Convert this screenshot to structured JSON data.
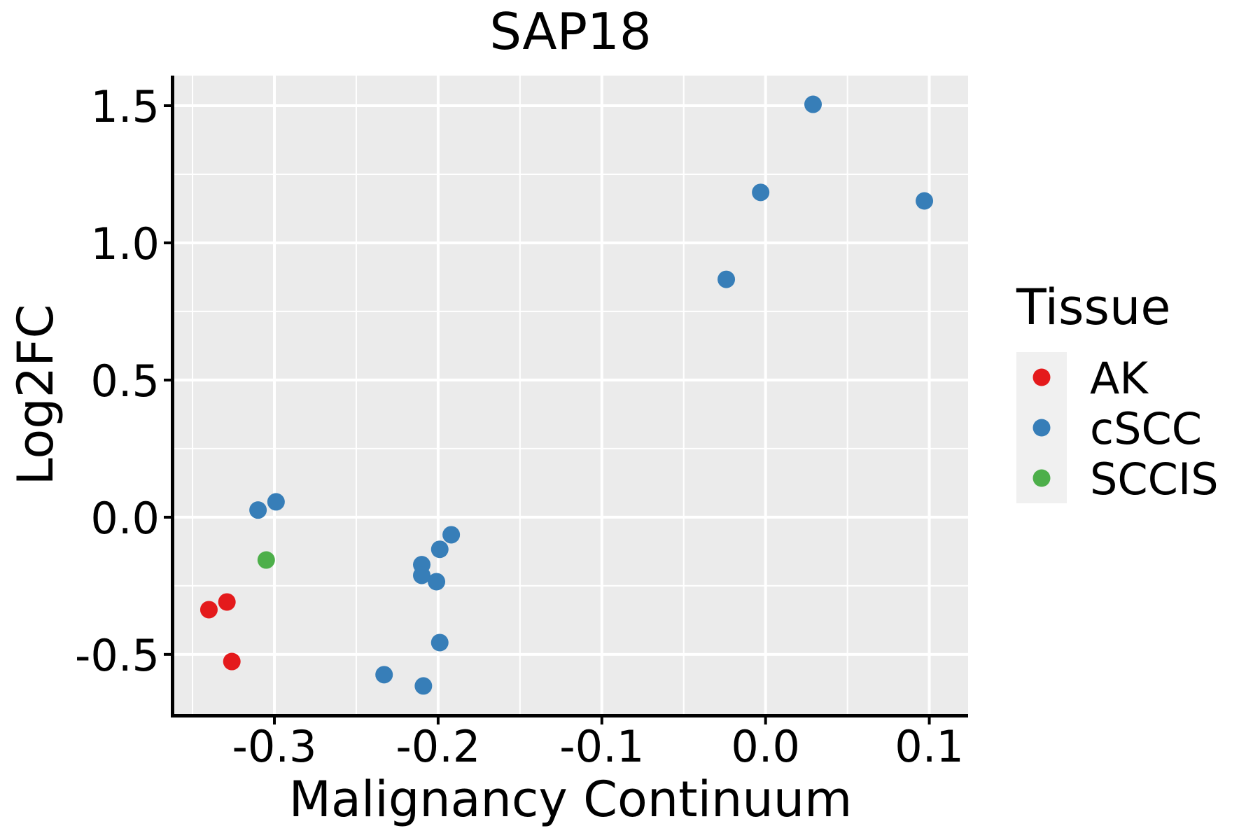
{
  "chart_data": {
    "type": "scatter",
    "title": "SAP18",
    "xlabel": "Malignancy Continuum",
    "ylabel": "Log2FC",
    "legend": {
      "title": "Tissue",
      "position": "right",
      "entries": [
        "AK",
        "cSCC",
        "SCCIS"
      ]
    },
    "x_axis": {
      "domain": [
        -0.362,
        0.1237
      ],
      "ticks": [
        -0.3,
        -0.2,
        -0.1,
        0.0,
        0.1
      ],
      "tick_labels": [
        "-0.3",
        "-0.2",
        "-0.1",
        "0.0",
        "0.1"
      ],
      "minor_ticks": [
        -0.35,
        -0.25,
        -0.15,
        -0.05,
        0.05
      ],
      "grid": true
    },
    "y_axis": {
      "domain": [
        -0.7173,
        1.6097
      ],
      "ticks": [
        1.5,
        1.0,
        0.5,
        0.0,
        -0.5
      ],
      "tick_labels": [
        "1.5",
        "1.0",
        "0.5",
        "0.0",
        "-0.5"
      ],
      "minor_ticks": [
        1.25,
        0.75,
        0.25,
        -0.25
      ],
      "grid": true
    },
    "series": [
      {
        "name": "AK",
        "color": "#E41A1C",
        "points": [
          [
            -0.34,
            -0.337
          ],
          [
            -0.329,
            -0.309
          ],
          [
            -0.326,
            -0.526
          ]
        ]
      },
      {
        "name": "cSCC",
        "color": "#377EB8",
        "points": [
          [
            -0.31,
            0.026
          ],
          [
            -0.299,
            0.056
          ],
          [
            -0.192,
            -0.064
          ],
          [
            -0.199,
            -0.117
          ],
          [
            -0.21,
            -0.173
          ],
          [
            -0.21,
            -0.212
          ],
          [
            -0.201,
            -0.235
          ],
          [
            -0.199,
            -0.457
          ],
          [
            -0.233,
            -0.574
          ],
          [
            -0.209,
            -0.615
          ],
          [
            -0.024,
            0.867
          ],
          [
            -0.003,
            1.184
          ],
          [
            0.029,
            1.505
          ],
          [
            0.097,
            1.153
          ]
        ]
      },
      {
        "name": "SCCIS",
        "color": "#4DAF4A",
        "points": [
          [
            -0.305,
            -0.156
          ]
        ]
      }
    ],
    "styles": {
      "panel_bg": "#EBEBEB",
      "grid_color": "#FFFFFF",
      "axis_line_color": "#000000",
      "tick_color": "#000000",
      "text_color": "#000000",
      "legend_key_bg": "#F0F0F0"
    }
  }
}
